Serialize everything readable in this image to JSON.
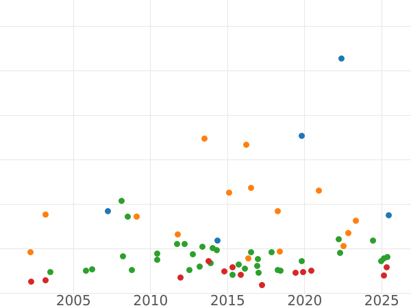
{
  "chart_data": {
    "type": "scatter",
    "title": "",
    "xlabel": "",
    "ylabel": "",
    "grid": true,
    "legend": "none",
    "background": "#ffffff",
    "grid_color": "#e7e7e7",
    "tick_label_color": "#545454",
    "x_ticks": [
      2005,
      2010,
      2015,
      2020,
      2025
    ],
    "x_tick_labels": [
      "2005",
      "2010",
      "2015",
      "2020",
      "2025"
    ],
    "xlim": [
      2000.23,
      2026.9
    ],
    "ylim": [
      -0.33,
      6.59
    ],
    "y_gridline_values": [
      0,
      1,
      2,
      3,
      4,
      5,
      6
    ],
    "y_axis_note": "y-axis tick labels are cropped out of view; values expressed in gridline units",
    "series": [
      {
        "name": "blue",
        "color": "#1f77b4",
        "points": [
          [
            2007.25,
            1.85
          ],
          [
            2014.35,
            1.18
          ],
          [
            2019.8,
            3.53
          ],
          [
            2022.4,
            5.27
          ],
          [
            2025.45,
            1.76
          ]
        ]
      },
      {
        "name": "orange",
        "color": "#ff7f0e",
        "points": [
          [
            2002.2,
            0.93
          ],
          [
            2003.2,
            1.77
          ],
          [
            2009.1,
            1.72
          ],
          [
            2011.75,
            1.32
          ],
          [
            2013.5,
            3.47
          ],
          [
            2015.1,
            2.26
          ],
          [
            2016.2,
            3.33
          ],
          [
            2016.35,
            0.79
          ],
          [
            2016.5,
            2.37
          ],
          [
            2018.25,
            1.84
          ],
          [
            2018.4,
            0.94
          ],
          [
            2020.9,
            2.3
          ],
          [
            2022.5,
            1.06
          ],
          [
            2022.85,
            1.35
          ],
          [
            2023.3,
            1.63
          ]
        ]
      },
      {
        "name": "green",
        "color": "#2ca02c",
        "points": [
          [
            2003.5,
            0.48
          ],
          [
            2005.8,
            0.51
          ],
          [
            2006.2,
            0.54
          ],
          [
            2008.1,
            2.08
          ],
          [
            2008.2,
            0.83
          ],
          [
            2008.5,
            1.72
          ],
          [
            2008.8,
            0.53
          ],
          [
            2010.45,
            0.9
          ],
          [
            2010.45,
            0.75
          ],
          [
            2011.7,
            1.11
          ],
          [
            2012.2,
            1.11
          ],
          [
            2012.5,
            0.53
          ],
          [
            2012.75,
            0.87
          ],
          [
            2013.2,
            0.6
          ],
          [
            2013.35,
            1.05
          ],
          [
            2013.9,
            0.67
          ],
          [
            2014.05,
            1.01
          ],
          [
            2014.3,
            0.97
          ],
          [
            2015.3,
            0.42
          ],
          [
            2015.7,
            0.64
          ],
          [
            2016.1,
            0.56
          ],
          [
            2016.5,
            0.92
          ],
          [
            2016.9,
            0.62
          ],
          [
            2016.95,
            0.77
          ],
          [
            2017.0,
            0.46
          ],
          [
            2017.85,
            0.93
          ],
          [
            2018.25,
            0.53
          ],
          [
            2018.45,
            0.51
          ],
          [
            2019.8,
            0.72
          ],
          [
            2022.2,
            1.22
          ],
          [
            2022.3,
            0.91
          ],
          [
            2024.45,
            1.19
          ],
          [
            2024.95,
            0.73
          ],
          [
            2025.15,
            0.79
          ],
          [
            2025.35,
            0.82
          ]
        ]
      },
      {
        "name": "red",
        "color": "#d62728",
        "points": [
          [
            2002.25,
            0.26
          ],
          [
            2003.2,
            0.29
          ],
          [
            2011.95,
            0.35
          ],
          [
            2013.75,
            0.73
          ],
          [
            2014.8,
            0.49
          ],
          [
            2015.3,
            0.59
          ],
          [
            2015.85,
            0.41
          ],
          [
            2017.25,
            0.18
          ],
          [
            2019.4,
            0.46
          ],
          [
            2019.9,
            0.48
          ],
          [
            2020.45,
            0.51
          ],
          [
            2025.15,
            0.4
          ],
          [
            2025.3,
            0.58
          ]
        ]
      }
    ]
  }
}
